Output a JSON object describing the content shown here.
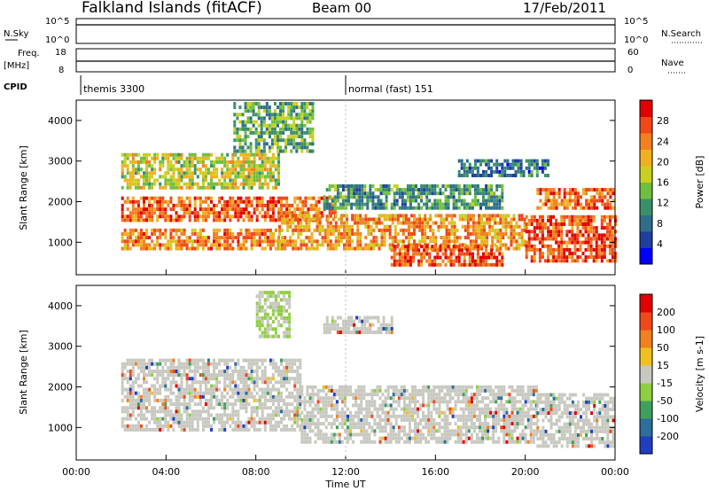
{
  "header": {
    "station": "Falkland Islands (fitACF)",
    "beam": "Beam 00",
    "date": "17/Feb/2011"
  },
  "summary_panels": {
    "nsky_label": "N.Sky",
    "nsky_ticks": [
      "10^5",
      "10^0"
    ],
    "nsearch_label": "N.Search",
    "nsearch_ticks": [
      "10^5",
      "10^0"
    ],
    "freq_label_1": "Freq.",
    "freq_label_2": "[MHz]",
    "freq_ticks": [
      "18",
      "8"
    ],
    "nave_label": "Nave",
    "nave_ticks": [
      "60",
      "0"
    ],
    "cpid_label": "CPID",
    "cpid_segments": [
      {
        "start_h": 0.2,
        "label": "themis 3300"
      },
      {
        "start_h": 12.0,
        "label": "normal (fast) 151"
      }
    ]
  },
  "chart_data": [
    {
      "type": "heatmap",
      "title": "Power",
      "ylabel": "Slant Range [km]",
      "xlabel": "",
      "xlim": [
        0,
        24
      ],
      "ylim": [
        200,
        4500
      ],
      "yticks": [
        "4000",
        "3000",
        "2000",
        "1000"
      ],
      "colorbar_label": "Power [dB]",
      "colorbar_ticks": [
        "28",
        "24",
        "20",
        "16",
        "12",
        "8",
        "4"
      ],
      "colors": [
        "#0000ff",
        "#1f3f9f",
        "#2e6e8a",
        "#3a8f6a",
        "#6fbf3f",
        "#c8d020",
        "#f0b020",
        "#f08020",
        "#f04818",
        "#e00000"
      ],
      "bands": [
        {
          "t0": 2.0,
          "t1": 11.5,
          "r0": 1500,
          "r1": 2100,
          "level": 0.8
        },
        {
          "t0": 2.0,
          "t1": 9.0,
          "r0": 800,
          "r1": 1300,
          "level": 0.75
        },
        {
          "t0": 9.0,
          "t1": 20.0,
          "r0": 800,
          "r1": 1700,
          "level": 0.7
        },
        {
          "t0": 14.0,
          "t1": 19.0,
          "r0": 400,
          "r1": 900,
          "level": 0.85
        },
        {
          "t0": 20.0,
          "t1": 24.0,
          "r0": 500,
          "r1": 1600,
          "level": 0.85
        },
        {
          "t0": 20.5,
          "t1": 24.0,
          "r0": 1800,
          "r1": 2300,
          "level": 0.8
        },
        {
          "t0": 2.0,
          "t1": 9.0,
          "r0": 2300,
          "r1": 3200,
          "level": 0.55
        },
        {
          "t0": 7.0,
          "t1": 10.5,
          "r0": 3200,
          "r1": 4400,
          "level": 0.4
        },
        {
          "t0": 11.0,
          "t1": 19.0,
          "r0": 1800,
          "r1": 2400,
          "level": 0.35
        },
        {
          "t0": 17.0,
          "t1": 21.0,
          "r0": 2600,
          "r1": 3000,
          "level": 0.25
        }
      ]
    },
    {
      "type": "heatmap",
      "title": "Velocity",
      "ylabel": "Slant Range [km]",
      "xlabel": "Time UT",
      "xlim": [
        0,
        24
      ],
      "ylim": [
        200,
        4500
      ],
      "xticks": [
        "00:00",
        "04:00",
        "08:00",
        "12:00",
        "16:00",
        "20:00",
        "00:00"
      ],
      "yticks": [
        "4000",
        "3000",
        "2000",
        "1000"
      ],
      "colorbar_label": "Velocity [m s-1]",
      "colorbar_ticks": [
        "200",
        "100",
        "50",
        "15",
        "-15",
        "-50",
        "-100",
        "-200"
      ],
      "colors": [
        "#1f3fbf",
        "#2e6e9a",
        "#3f9f5f",
        "#8fcf3f",
        "#c8c8c0",
        "#f0c020",
        "#f08020",
        "#f04818",
        "#e00000"
      ],
      "ground_scatter_color": "#c8c8c0",
      "bands": [
        {
          "t0": 2.0,
          "t1": 10.0,
          "r0": 900,
          "r1": 2700,
          "level": 0.5
        },
        {
          "t0": 10.0,
          "t1": 20.5,
          "r0": 600,
          "r1": 2000,
          "level": 0.5
        },
        {
          "t0": 20.5,
          "t1": 24.0,
          "r0": 500,
          "r1": 1800,
          "level": 0.5
        },
        {
          "t0": 8.0,
          "t1": 9.5,
          "r0": 3200,
          "r1": 4300,
          "level": 0.7
        },
        {
          "t0": 11.0,
          "t1": 14.0,
          "r0": 3300,
          "r1": 3700,
          "level": 0.5
        }
      ]
    }
  ]
}
